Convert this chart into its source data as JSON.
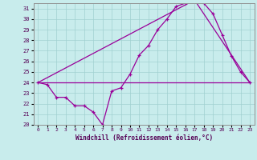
{
  "xlabel": "Windchill (Refroidissement éolien,°C)",
  "background_color": "#c8ecec",
  "line_color": "#990099",
  "xlim": [
    -0.5,
    23.5
  ],
  "ylim": [
    20,
    31.5
  ],
  "yticks": [
    20,
    21,
    22,
    23,
    24,
    25,
    26,
    27,
    28,
    29,
    30,
    31
  ],
  "xticks": [
    0,
    1,
    2,
    3,
    4,
    5,
    6,
    7,
    8,
    9,
    10,
    11,
    12,
    13,
    14,
    15,
    16,
    17,
    18,
    19,
    20,
    21,
    22,
    23
  ],
  "series": [
    {
      "x": [
        0,
        1,
        2,
        3,
        4,
        5,
        6,
        7,
        8,
        9,
        10,
        11,
        12,
        13,
        14,
        15,
        16,
        17,
        18,
        19,
        20,
        21,
        22,
        23
      ],
      "y": [
        24.0,
        23.8,
        22.6,
        22.6,
        21.8,
        21.8,
        21.2,
        20.0,
        23.2,
        23.5,
        24.8,
        26.6,
        27.5,
        29.0,
        30.0,
        31.2,
        31.5,
        31.8,
        31.5,
        30.5,
        28.5,
        26.5,
        25.0,
        24.0
      ],
      "marker": true
    },
    {
      "x": [
        0,
        23
      ],
      "y": [
        24.0,
        24.0
      ],
      "marker": false
    },
    {
      "x": [
        0,
        17,
        23
      ],
      "y": [
        24.0,
        31.8,
        24.0
      ],
      "marker": false
    }
  ]
}
